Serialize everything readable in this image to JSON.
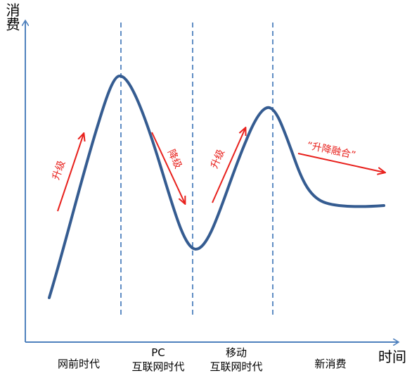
{
  "axes": {
    "y_title": "消费",
    "x_title": "时间"
  },
  "eras": [
    {
      "line1": "",
      "line2": "网前时代"
    },
    {
      "line1": "PC",
      "line2": "互联网时代"
    },
    {
      "line1": "移动",
      "line2": "互联网时代"
    },
    {
      "line1": "",
      "line2": "新消费"
    }
  ],
  "annotations": {
    "upgrade_1": "升级",
    "downgrade": "降级",
    "upgrade_2": "升级",
    "fusion": "“升降融合”"
  },
  "colors": {
    "axis": "#4f81bd",
    "curve": "#355c91",
    "divider": "#4f81bd",
    "arrow": "#e8201c"
  }
}
